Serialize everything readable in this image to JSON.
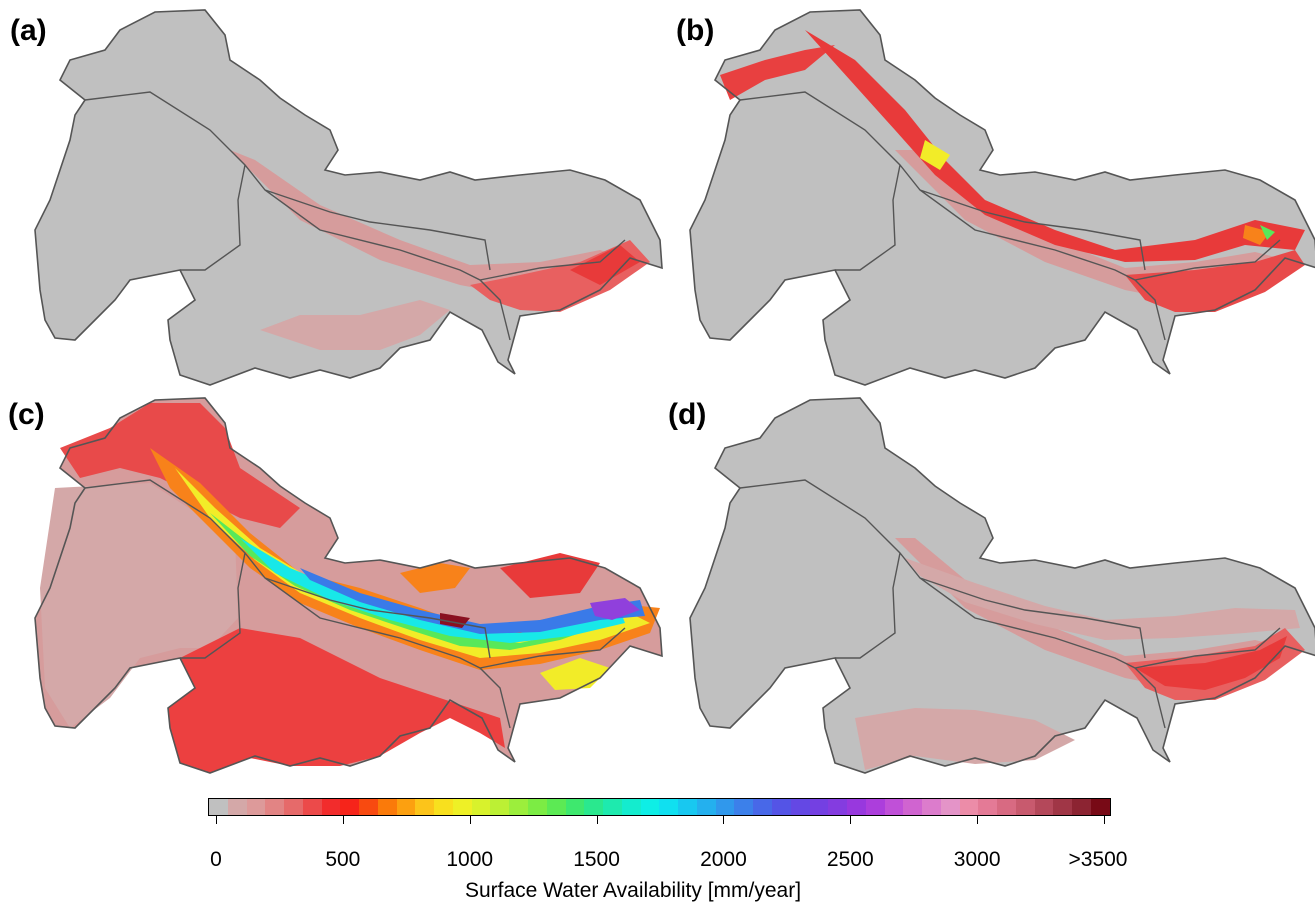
{
  "panels": [
    {
      "label": "(a)"
    },
    {
      "label": "(b)"
    },
    {
      "label": "(c)"
    },
    {
      "label": "(d)"
    }
  ],
  "legend": {
    "title": "Surface Water Availability [mm/year]",
    "min": 0,
    "max": 3500,
    "ticks": [
      {
        "value": 0,
        "label": "0"
      },
      {
        "value": 500,
        "label": "500"
      },
      {
        "value": 1000,
        "label": "1000"
      },
      {
        "value": 1500,
        "label": "1500"
      },
      {
        "value": 2000,
        "label": "2000"
      },
      {
        "value": 2500,
        "label": "2500"
      },
      {
        "value": 3000,
        "label": "3000"
      },
      {
        "value": 3500,
        "label": ">3500"
      }
    ],
    "colors": [
      "#c0c0c0",
      "#d4a8a8",
      "#dd9a9a",
      "#e28484",
      "#e66a6a",
      "#ec4a4a",
      "#f22c2c",
      "#f6241a",
      "#f84a10",
      "#fa7a0a",
      "#fca010",
      "#fcc41a",
      "#f8e01e",
      "#eef026",
      "#d8f22c",
      "#bcf034",
      "#9cee3c",
      "#7cec44",
      "#5cea54",
      "#3ee86e",
      "#2ae88e",
      "#1eeaae",
      "#14ecce",
      "#0eeee6",
      "#10e0f0",
      "#18c8f0",
      "#24b0ee",
      "#3098ec",
      "#3c80ea",
      "#4868e8",
      "#5454e6",
      "#6448e4",
      "#7440e2",
      "#843ce0",
      "#9838de",
      "#ac3edc",
      "#c050d8",
      "#d064d0",
      "#dc7ccc",
      "#e494c8",
      "#ec8ca8",
      "#e47a96",
      "#d86a82",
      "#c85a6e",
      "#b4485a",
      "#a03646",
      "#8c2432",
      "#780a16"
    ],
    "color_range_note_omitted": true
  },
  "map_colors": {
    "background": "#c0c0c0",
    "boundary": "#555555",
    "low_pink": "#d69c9c",
    "red": "#e83a3a",
    "orange": "#f8821a",
    "yellow": "#f2ec28",
    "green": "#58e85a",
    "cyan": "#18e8e8",
    "blue": "#3a7ae8",
    "purple": "#9040dc",
    "dark_red": "#8a1020"
  }
}
